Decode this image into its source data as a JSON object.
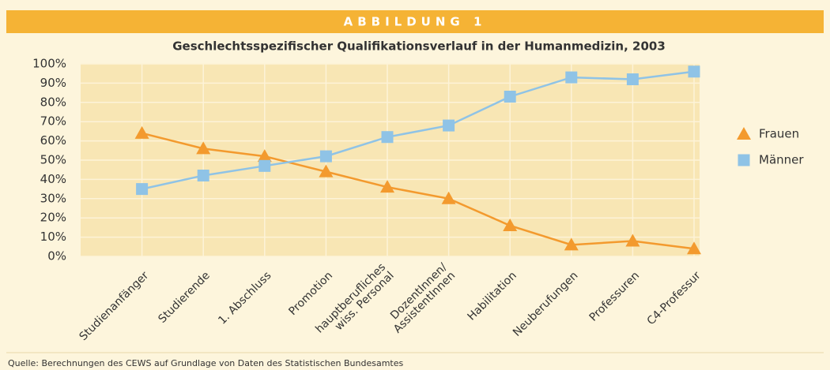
{
  "chart_data": {
    "type": "line",
    "header": "ABBILDUNG 1",
    "title": "Geschlechtsspezifischer Qualifikationsverlauf in der Humanmedizin, 2003",
    "categories": [
      "Studienanfänger",
      "Studierende",
      "1. Abschluss",
      "Promotion",
      "hauptberufliches\nwiss. Personal",
      "DozentInnen/\nAssistentInnen",
      "Habilitation",
      "Neuberufungen",
      "Professuren",
      "C4-Professur"
    ],
    "series": [
      {
        "name": "Frauen",
        "color": "#f39a2e",
        "marker": "triangle",
        "values": [
          64,
          56,
          52,
          44,
          36,
          30,
          16,
          6,
          8,
          4
        ]
      },
      {
        "name": "Männer",
        "color": "#8fc3e6",
        "marker": "square",
        "values": [
          35,
          42,
          47,
          52,
          62,
          68,
          83,
          93,
          92,
          96
        ]
      }
    ],
    "ylim": [
      0,
      100
    ],
    "yticks": [
      {
        "value": 0,
        "label": "0%"
      },
      {
        "value": 10,
        "label": "10%"
      },
      {
        "value": 20,
        "label": "20%"
      },
      {
        "value": 30,
        "label": "30%"
      },
      {
        "value": 40,
        "label": "40%"
      },
      {
        "value": 50,
        "label": "50%"
      },
      {
        "value": 60,
        "label": "60%"
      },
      {
        "value": 70,
        "label": "70%"
      },
      {
        "value": 80,
        "label": "80%"
      },
      {
        "value": 90,
        "label": "90%"
      },
      {
        "value": 100,
        "label": "100%"
      }
    ],
    "grid": true,
    "legend": "right",
    "source": "Quelle: Berechnungen des CEWS auf Grundlage von Daten des Statistischen Bundesamtes"
  }
}
